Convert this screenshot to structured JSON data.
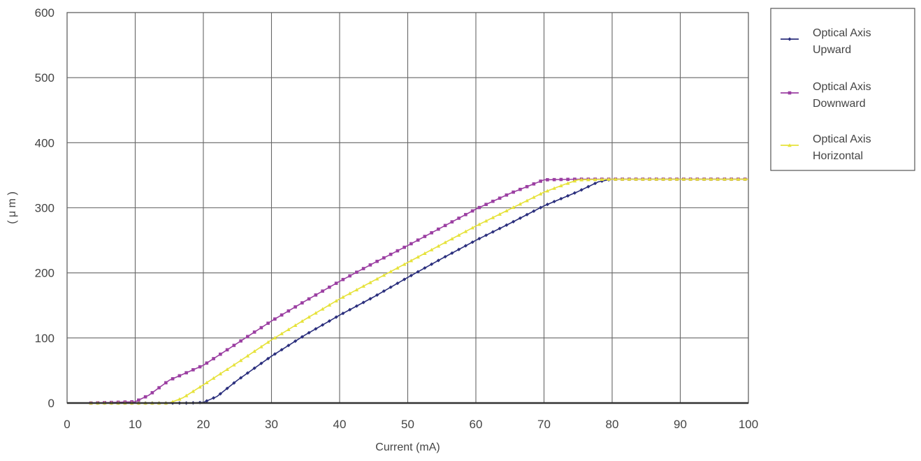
{
  "chart_data": {
    "type": "line",
    "xlabel": "Current (mA)",
    "ylabel": "( μ m )",
    "xlim": [
      0,
      100
    ],
    "ylim": [
      0,
      600
    ],
    "x_ticks": [
      "0",
      "10",
      "20",
      "30",
      "40",
      "50",
      "60",
      "70",
      "80",
      "90",
      "100"
    ],
    "y_ticks": [
      "0",
      "100",
      "200",
      "300",
      "400",
      "500",
      "600"
    ],
    "grid": true,
    "legend_position": "right",
    "series": [
      {
        "name": "Optical Axis Upward",
        "color": "#2b2f7d",
        "marker": "diamond",
        "points": [
          [
            3.5,
            0
          ],
          [
            18,
            0
          ],
          [
            20,
            1
          ],
          [
            22,
            10
          ],
          [
            25,
            35
          ],
          [
            30,
            72
          ],
          [
            35,
            105
          ],
          [
            40,
            135
          ],
          [
            45,
            163
          ],
          [
            50,
            193
          ],
          [
            55,
            222
          ],
          [
            60,
            250
          ],
          [
            65,
            276
          ],
          [
            70,
            303
          ],
          [
            75,
            325
          ],
          [
            78,
            340
          ],
          [
            80,
            344
          ],
          [
            85,
            344
          ],
          [
            90,
            344
          ],
          [
            95,
            344
          ],
          [
            100,
            344
          ]
        ]
      },
      {
        "name": "Optical Axis Downward",
        "color": "#9b3fa2",
        "marker": "square",
        "points": [
          [
            3.5,
            0
          ],
          [
            10,
            2
          ],
          [
            12,
            12
          ],
          [
            15,
            35
          ],
          [
            20,
            58
          ],
          [
            25,
            92
          ],
          [
            30,
            126
          ],
          [
            35,
            157
          ],
          [
            40,
            187
          ],
          [
            45,
            215
          ],
          [
            50,
            242
          ],
          [
            55,
            270
          ],
          [
            60,
            298
          ],
          [
            65,
            322
          ],
          [
            70,
            343
          ],
          [
            75,
            344
          ],
          [
            80,
            344
          ],
          [
            85,
            344
          ],
          [
            90,
            344
          ],
          [
            95,
            344
          ],
          [
            100,
            344
          ]
        ]
      },
      {
        "name": "Optical Axis Horizontal",
        "color": "#e6e23a",
        "marker": "triangle",
        "points": [
          [
            3.5,
            0
          ],
          [
            15,
            0
          ],
          [
            17,
            8
          ],
          [
            20,
            28
          ],
          [
            25,
            62
          ],
          [
            30,
            97
          ],
          [
            35,
            129
          ],
          [
            40,
            160
          ],
          [
            45,
            188
          ],
          [
            50,
            216
          ],
          [
            55,
            244
          ],
          [
            60,
            272
          ],
          [
            65,
            298
          ],
          [
            70,
            324
          ],
          [
            73,
            336
          ],
          [
            75,
            343
          ],
          [
            80,
            344
          ],
          [
            85,
            344
          ],
          [
            90,
            344
          ],
          [
            95,
            344
          ],
          [
            100,
            344
          ]
        ]
      }
    ]
  },
  "legend": {
    "entries": [
      {
        "line1": "Optical Axis",
        "line2": "Upward"
      },
      {
        "line1": "Optical Axis",
        "line2": "Downward"
      },
      {
        "line1": "Optical Axis",
        "line2": "Horizontal"
      }
    ]
  }
}
